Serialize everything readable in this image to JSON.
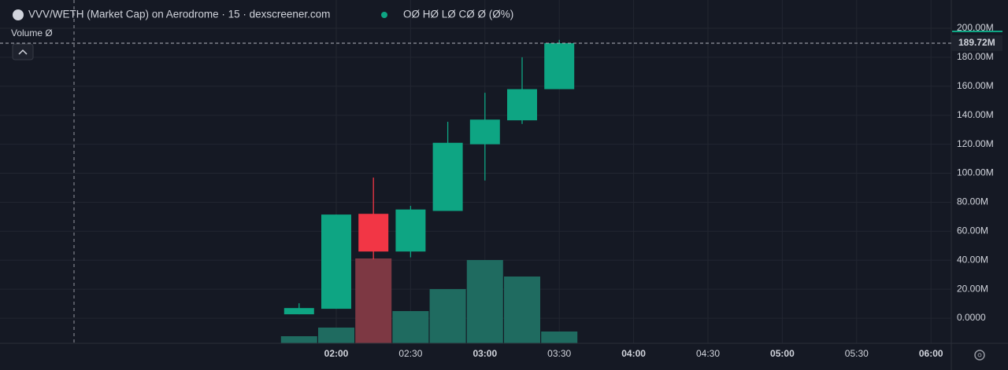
{
  "chart_data": {
    "type": "candlestick",
    "title": "VVV/WETH (Market Cap) on Aerodrome · 15 · dexscreener.com",
    "ohlc_legend": "OØ HØ LØ CØ Ø (Ø%)",
    "volume_label": "Volume Ø",
    "x": [
      "01:45",
      "02:00",
      "02:15",
      "02:30",
      "02:45",
      "03:00",
      "03:15",
      "03:30"
    ],
    "open": [
      2.7,
      6.5,
      72,
      46,
      74,
      120,
      136.5,
      158
    ],
    "high": [
      10.3,
      71.5,
      97,
      77.5,
      135.5,
      155.5,
      180,
      192
    ],
    "low": [
      2.7,
      6.5,
      40.6,
      42,
      74,
      95,
      134,
      158
    ],
    "close": [
      7,
      71.5,
      46,
      75,
      121,
      137,
      158,
      189.72
    ],
    "volume": [
      9,
      20,
      108,
      41,
      69,
      106,
      85,
      15
    ],
    "up_color": "#0ea583",
    "down_color": "#f23645",
    "up_volume_color": "#1f6b60",
    "down_volume_color": "#7d3843",
    "ylim": [
      -17.3,
      219.5
    ],
    "yticks": [
      {
        "value": 0,
        "label": "0.0000"
      },
      {
        "value": 20,
        "label": "20.00M"
      },
      {
        "value": 40,
        "label": "40.00M"
      },
      {
        "value": 60,
        "label": "60.00M"
      },
      {
        "value": 80,
        "label": "80.00M"
      },
      {
        "value": 100,
        "label": "100.00M"
      },
      {
        "value": 120,
        "label": "120.00M"
      },
      {
        "value": 140,
        "label": "140.00M"
      },
      {
        "value": 160,
        "label": "160.00M"
      },
      {
        "value": 180,
        "label": "180.00M"
      },
      {
        "value": 200,
        "label": "200.00M"
      }
    ],
    "xticks": [
      "02:00",
      "02:30",
      "03:00",
      "03:30",
      "04:00",
      "04:30",
      "05:00",
      "05:30",
      "06:00"
    ],
    "last_price": {
      "value": 189.72,
      "label": "189.72M"
    },
    "grid": true
  }
}
